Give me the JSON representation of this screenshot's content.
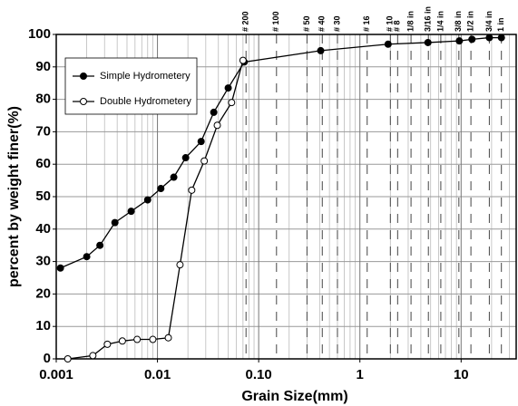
{
  "chart_data": {
    "type": "line",
    "xlabel": "Grain Size(mm)",
    "ylabel": "percent by weight finer(%)",
    "xscale": "log",
    "xlim": [
      0.001,
      35
    ],
    "ylim": [
      0,
      100
    ],
    "xticks": [
      0.001,
      0.01,
      {
        "value": 0.1,
        "label": "0.10"
      },
      1,
      10
    ],
    "yticks": [
      0,
      10,
      20,
      30,
      40,
      50,
      60,
      70,
      80,
      90,
      100
    ],
    "grid": true,
    "legend": "upper left",
    "sieves": [
      {
        "label": "# 200",
        "value": 0.075
      },
      {
        "label": "# 100",
        "value": 0.15
      },
      {
        "label": "# 50",
        "value": 0.3
      },
      {
        "label": "# 40",
        "value": 0.425
      },
      {
        "label": "# 30",
        "value": 0.6
      },
      {
        "label": "# 16",
        "value": 1.18
      },
      {
        "label": "# 10",
        "value": 2
      },
      {
        "label": "# 8",
        "value": 2.36
      },
      {
        "label": "1/8 in",
        "value": 3.2
      },
      {
        "label": "3/16 in",
        "value": 4.75
      },
      {
        "label": "1/4 in",
        "value": 6.3
      },
      {
        "label": "3/8 in",
        "value": 9.5
      },
      {
        "label": "1/2 in",
        "value": 12.5
      },
      {
        "label": "3/4 in",
        "value": 19
      },
      {
        "label": "1 in",
        "value": 25
      }
    ],
    "series": [
      {
        "name": "Simple Hydrometery",
        "color": "#000000",
        "marker": "filled",
        "x": [
          0.0011,
          0.002,
          0.0027,
          0.0038,
          0.0055,
          0.008,
          0.0108,
          0.0145,
          0.019,
          0.027,
          0.036,
          0.05,
          0.072,
          0.41,
          1.9,
          4.7,
          9.6,
          12.8,
          19,
          25
        ],
        "values": [
          28,
          31.5,
          35,
          42,
          45.5,
          49,
          52.5,
          56,
          62,
          67,
          76,
          83.5,
          91.5,
          95,
          97,
          97.5,
          98,
          98.5,
          99,
          99
        ]
      },
      {
        "name": "Double Hydrometery",
        "color": "#000000",
        "marker": "open",
        "x": [
          0.0013,
          0.0023,
          0.0032,
          0.0045,
          0.0063,
          0.009,
          0.0128,
          0.0167,
          0.0218,
          0.029,
          0.039,
          0.054,
          0.07
        ],
        "values": [
          0,
          1,
          4.5,
          5.5,
          6,
          6,
          6.5,
          29,
          52,
          61,
          72,
          79,
          92
        ]
      }
    ]
  }
}
